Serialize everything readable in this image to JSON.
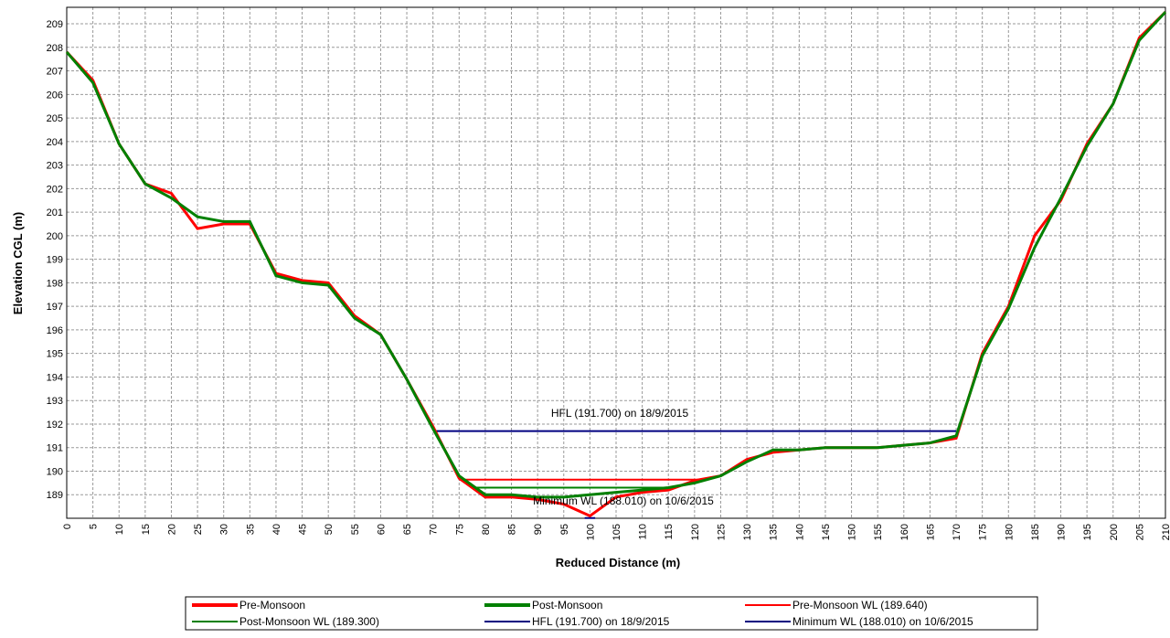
{
  "chart_data": {
    "type": "line",
    "xlabel": "Reduced Distance (m)",
    "ylabel": "Elevation CGL (m)",
    "xlim": [
      0,
      210
    ],
    "ylim": [
      188,
      209.7
    ],
    "xticks": [
      0,
      5,
      10,
      15,
      20,
      25,
      30,
      35,
      40,
      45,
      50,
      55,
      60,
      65,
      70,
      75,
      80,
      85,
      90,
      95,
      100,
      105,
      110,
      115,
      120,
      125,
      130,
      135,
      140,
      145,
      150,
      155,
      160,
      165,
      170,
      175,
      180,
      185,
      190,
      195,
      200,
      205,
      210
    ],
    "yticks": [
      189,
      190,
      191,
      192,
      193,
      194,
      195,
      196,
      197,
      198,
      199,
      200,
      201,
      202,
      203,
      204,
      205,
      206,
      207,
      208,
      209
    ],
    "grid": true,
    "legend": "bottom",
    "x": [
      0,
      5,
      10,
      15,
      20,
      25,
      30,
      35,
      40,
      45,
      50,
      55,
      60,
      65,
      70,
      75,
      80,
      85,
      90,
      95,
      100,
      105,
      110,
      115,
      120,
      125,
      130,
      135,
      140,
      145,
      150,
      155,
      160,
      165,
      170,
      175,
      180,
      185,
      190,
      195,
      200,
      205,
      210
    ],
    "series": [
      {
        "name": "Pre-Monsoon",
        "color": "#ff0000",
        "values": [
          207.8,
          206.6,
          203.9,
          202.2,
          201.8,
          200.3,
          200.5,
          200.5,
          198.4,
          198.1,
          198.0,
          196.6,
          195.8,
          193.9,
          191.9,
          189.7,
          188.9,
          188.9,
          188.8,
          188.6,
          188.1,
          188.9,
          189.1,
          189.2,
          189.6,
          189.8,
          190.5,
          190.8,
          190.9,
          191.0,
          191.0,
          191.0,
          191.1,
          191.2,
          191.4,
          195.0,
          197.0,
          200.0,
          201.5,
          203.9,
          205.6,
          208.4,
          209.5
        ]
      },
      {
        "name": "Post-Monsoon",
        "color": "#008000",
        "values": [
          207.8,
          206.5,
          203.9,
          202.2,
          201.6,
          200.8,
          200.6,
          200.6,
          198.3,
          198.0,
          197.9,
          196.5,
          195.8,
          193.9,
          191.8,
          189.8,
          189.0,
          189.0,
          188.9,
          188.9,
          189.0,
          189.1,
          189.2,
          189.3,
          189.5,
          189.8,
          190.4,
          190.9,
          190.9,
          191.0,
          191.0,
          191.0,
          191.1,
          191.2,
          191.5,
          194.9,
          196.9,
          199.5,
          201.6,
          203.8,
          205.6,
          208.3,
          209.5
        ]
      }
    ],
    "levels": [
      {
        "name": "Pre-Monsoon WL (189.640)",
        "color": "#ff0000",
        "x": [
          75,
          122
        ],
        "values": [
          189.64,
          189.64
        ]
      },
      {
        "name": "Post-Monsoon WL (189.300)",
        "color": "#008000",
        "x": [
          78,
          115
        ],
        "values": [
          189.3,
          189.3
        ]
      },
      {
        "name": "HFL (191.700) on 18/9/2015",
        "color": "#000080",
        "x": [
          70.5,
          170
        ],
        "values": [
          191.7,
          191.7
        ]
      },
      {
        "name": "Minimum WL (188.010) on 10/6/2015",
        "color": "#000080",
        "x": [
          99,
          101
        ],
        "values": [
          188.01,
          188.01
        ]
      }
    ],
    "annotations": [
      "HFL (191.700) on 18/9/2015",
      "Minimum WL (188.010) on 10/6/2015"
    ]
  }
}
